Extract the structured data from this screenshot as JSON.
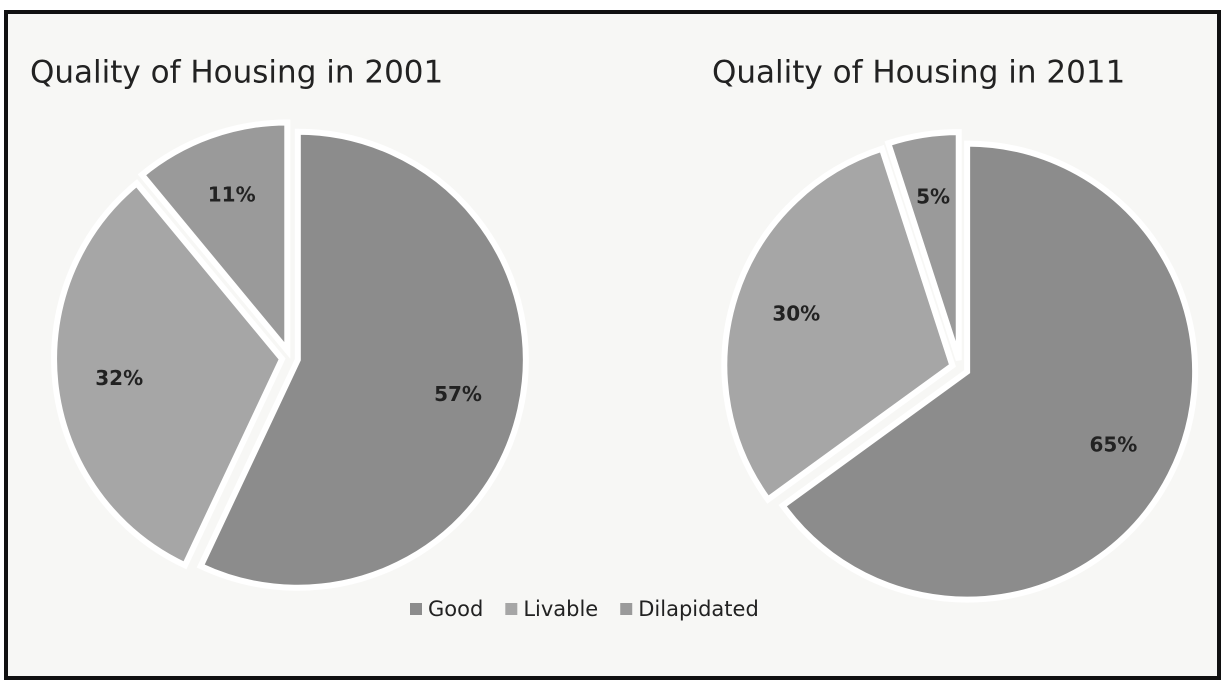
{
  "legend": {
    "categories": [
      "Good",
      "Livable",
      "Dilapidated"
    ],
    "colors": [
      "#8c8c8c",
      "#a6a6a6",
      "#9a9a9a"
    ]
  },
  "chart_data": [
    {
      "type": "pie",
      "title": "Quality of Housing in 2001",
      "values": [
        57,
        32,
        11
      ],
      "value_labels": [
        "57%",
        "32%",
        "11%"
      ]
    },
    {
      "type": "pie",
      "title": "Quality of Housing in 2011",
      "values": [
        65,
        30,
        5
      ],
      "value_labels": [
        "65%",
        "30%",
        "5%"
      ]
    }
  ]
}
